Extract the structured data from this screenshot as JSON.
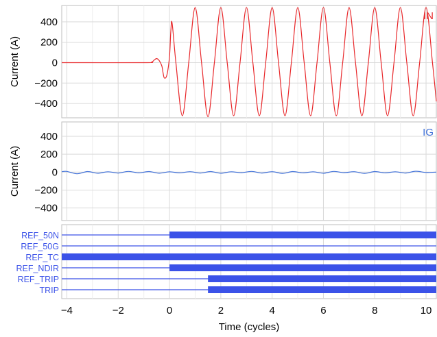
{
  "chart_data": [
    {
      "type": "line",
      "panel": "top",
      "label": "IN",
      "ylabel": "Current (A)",
      "xlim": [
        -4.2,
        10.4
      ],
      "ylim": [
        -540,
        560
      ],
      "yticks": [
        -400,
        -200,
        0,
        200,
        400
      ],
      "grid": true,
      "color": "#e8282b",
      "series": [
        {
          "name": "IN",
          "x": [
            -4.2,
            -1.0,
            -0.7,
            -0.6,
            -0.5,
            -0.4,
            -0.3,
            -0.25,
            -0.2,
            -0.1,
            0.0,
            0.05,
            0.1,
            0.25,
            0.5,
            0.75,
            1.0,
            1.25,
            1.5,
            1.75,
            2.0,
            2.25,
            2.5,
            2.75,
            3.0,
            3.25,
            3.5,
            3.75,
            4.0,
            4.25,
            4.5,
            4.75,
            5.0,
            5.25,
            5.5,
            5.75,
            6.0,
            6.25,
            6.5,
            6.75,
            7.0,
            7.25,
            7.5,
            7.75,
            8.0,
            8.25,
            8.5,
            8.75,
            9.0,
            9.25,
            9.5,
            9.75,
            10.0,
            10.25,
            10.4
          ],
          "y": [
            0,
            0,
            5,
            25,
            40,
            20,
            -30,
            -100,
            -150,
            -120,
            60,
            300,
            390,
            0,
            -520,
            0,
            540,
            0,
            -530,
            0,
            540,
            0,
            -520,
            0,
            540,
            0,
            -520,
            0,
            540,
            0,
            -520,
            0,
            540,
            0,
            -520,
            0,
            540,
            0,
            -520,
            0,
            540,
            0,
            -520,
            0,
            540,
            0,
            -520,
            0,
            540,
            0,
            -520,
            0,
            540,
            0,
            -380
          ]
        }
      ]
    },
    {
      "type": "line",
      "panel": "middle",
      "label": "IG",
      "ylabel": "Current (A)",
      "xlim": [
        -4.2,
        10.4
      ],
      "ylim": [
        -540,
        560
      ],
      "yticks": [
        -400,
        -200,
        0,
        200,
        400
      ],
      "grid": true,
      "color": "#3e6fd8",
      "series": [
        {
          "name": "IG",
          "x": [
            -4.2,
            -4.0,
            -3.6,
            -3.2,
            -2.8,
            -2.4,
            -2.0,
            -1.6,
            -1.2,
            -0.8,
            -0.4,
            0.0,
            0.4,
            0.8,
            1.2,
            1.6,
            2.0,
            2.4,
            2.8,
            3.2,
            3.6,
            4.0,
            4.4,
            4.8,
            5.2,
            5.6,
            6.0,
            6.4,
            6.8,
            7.2,
            7.6,
            8.0,
            8.4,
            8.8,
            9.2,
            9.6,
            10.0,
            10.4
          ],
          "y": [
            5,
            8,
            -18,
            6,
            -12,
            4,
            -10,
            8,
            -8,
            6,
            -12,
            4,
            -8,
            5,
            -10,
            6,
            -12,
            4,
            -6,
            8,
            -10,
            5,
            -14,
            6,
            -8,
            4,
            -12,
            8,
            -6,
            5,
            -14,
            6,
            -8,
            4,
            -10,
            10,
            -4,
            0
          ]
        }
      ]
    },
    {
      "type": "bar",
      "panel": "bottom",
      "xlabel": "Time (cycles)",
      "xlim": [
        -4.2,
        10.4
      ],
      "xticks": [
        -4,
        -2,
        0,
        2,
        4,
        6,
        8,
        10
      ],
      "grid": true,
      "color": "#3b52e8",
      "categories": [
        "REF_50N",
        "REF_50G",
        "REF_TC",
        "REF_NDIR",
        "REF_TRIP",
        "TRIP"
      ],
      "asserted_from": [
        0.0,
        null,
        -4.2,
        0.0,
        1.5,
        1.5
      ],
      "asserted_to": [
        10.4,
        null,
        10.4,
        10.4,
        10.4,
        10.4
      ]
    }
  ]
}
